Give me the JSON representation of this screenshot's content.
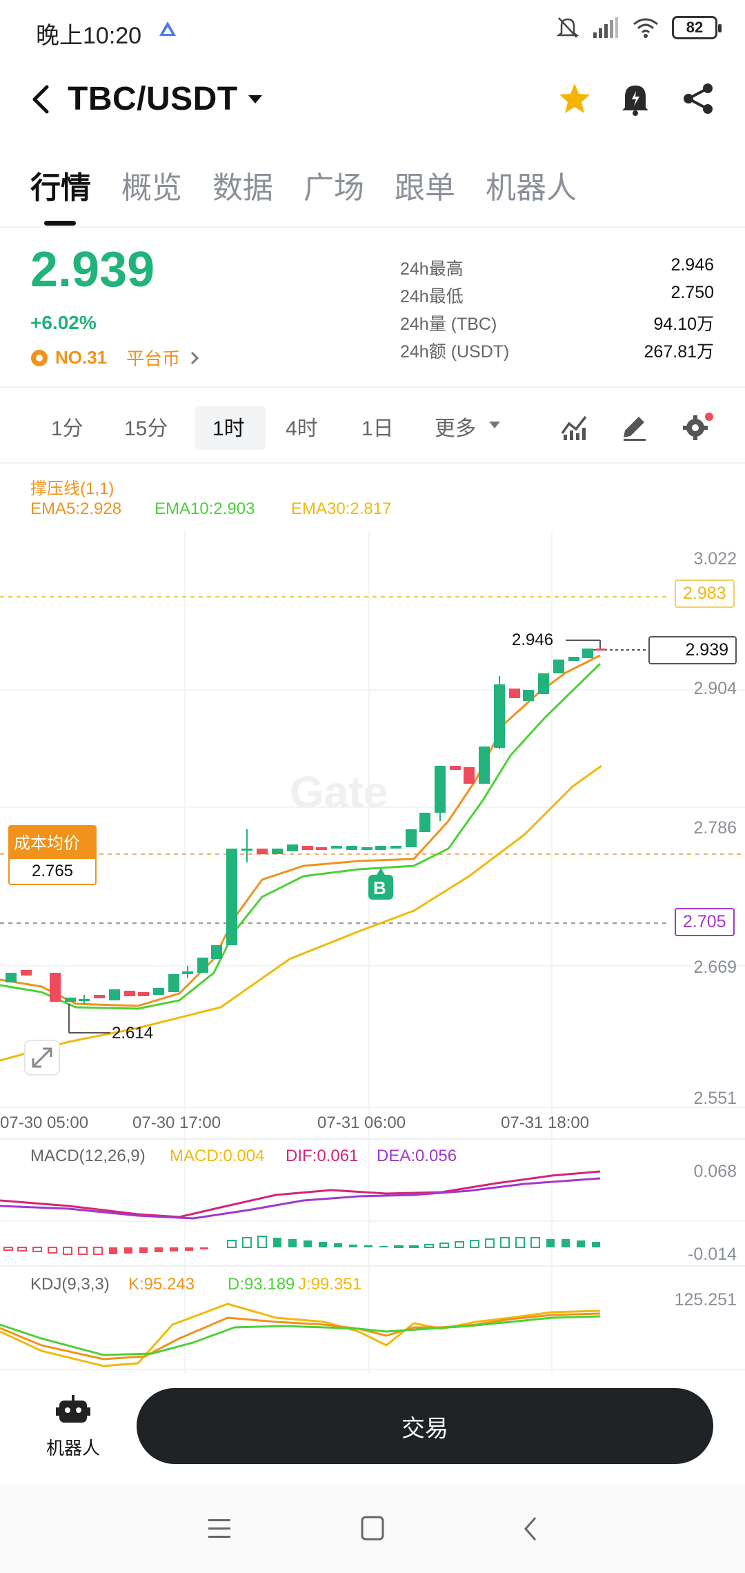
{
  "status_bar": {
    "time": "晚上10:20",
    "battery": "82"
  },
  "header": {
    "pair": "TBC/USDT"
  },
  "tabs": [
    "行情",
    "概览",
    "数据",
    "广场",
    "跟单",
    "机器人"
  ],
  "price": {
    "last": "2.939",
    "change": "+6.02%",
    "rank": "NO.31",
    "category": "平台币",
    "stats": [
      {
        "label": "24h最高",
        "value": "2.946"
      },
      {
        "label": "24h最低",
        "value": "2.750"
      },
      {
        "label": "24h量 (TBC)",
        "value": "94.10万"
      },
      {
        "label": "24h额 (USDT)",
        "value": "267.81万"
      }
    ]
  },
  "timeframes": [
    "1分",
    "15分",
    "1时",
    "4时",
    "1日",
    "更多"
  ],
  "active_timeframe": "1时",
  "chart": {
    "support_label": "撑压线(1,1)",
    "ema5": "EMA5:2.928",
    "ema10": "EMA10:2.903",
    "ema30": "EMA30:2.817",
    "price_axis": [
      "3.022",
      "2.904",
      "2.786",
      "2.669",
      "2.551"
    ],
    "tag_high_line": "2.983",
    "tag_low_line": "2.705",
    "tag_last": "2.939",
    "high_marker": "2.946",
    "low_marker": "2.614",
    "cost_label": "成本均价",
    "cost_value": "2.765",
    "buy_marker": "B",
    "time_axis": [
      "07-30 05:00",
      "07-30 17:00",
      "07-31 06:00",
      "07-31 18:00"
    ],
    "watermark": "Gate"
  },
  "macd": {
    "label": "MACD(12,26,9)",
    "macd": "MACD:0.004",
    "dif": "DIF:0.061",
    "dea": "DEA:0.056",
    "axis_top": "0.068",
    "axis_bottom": "-0.014"
  },
  "kdj": {
    "label": "KDJ(9,3,3)",
    "k": "K:95.243",
    "d": "D:93.189",
    "j": "J:99.351",
    "axis_top": "125.251"
  },
  "bottom": {
    "robot_label": "机器人",
    "trade_label": "交易"
  },
  "colors": {
    "up": "#21b37b",
    "down": "#ef4b5c",
    "ema5": "#f0921b",
    "ema10": "#4cd137",
    "ema30": "#f0b90b",
    "dif": "#d4247a",
    "dea": "#a238c9"
  }
}
